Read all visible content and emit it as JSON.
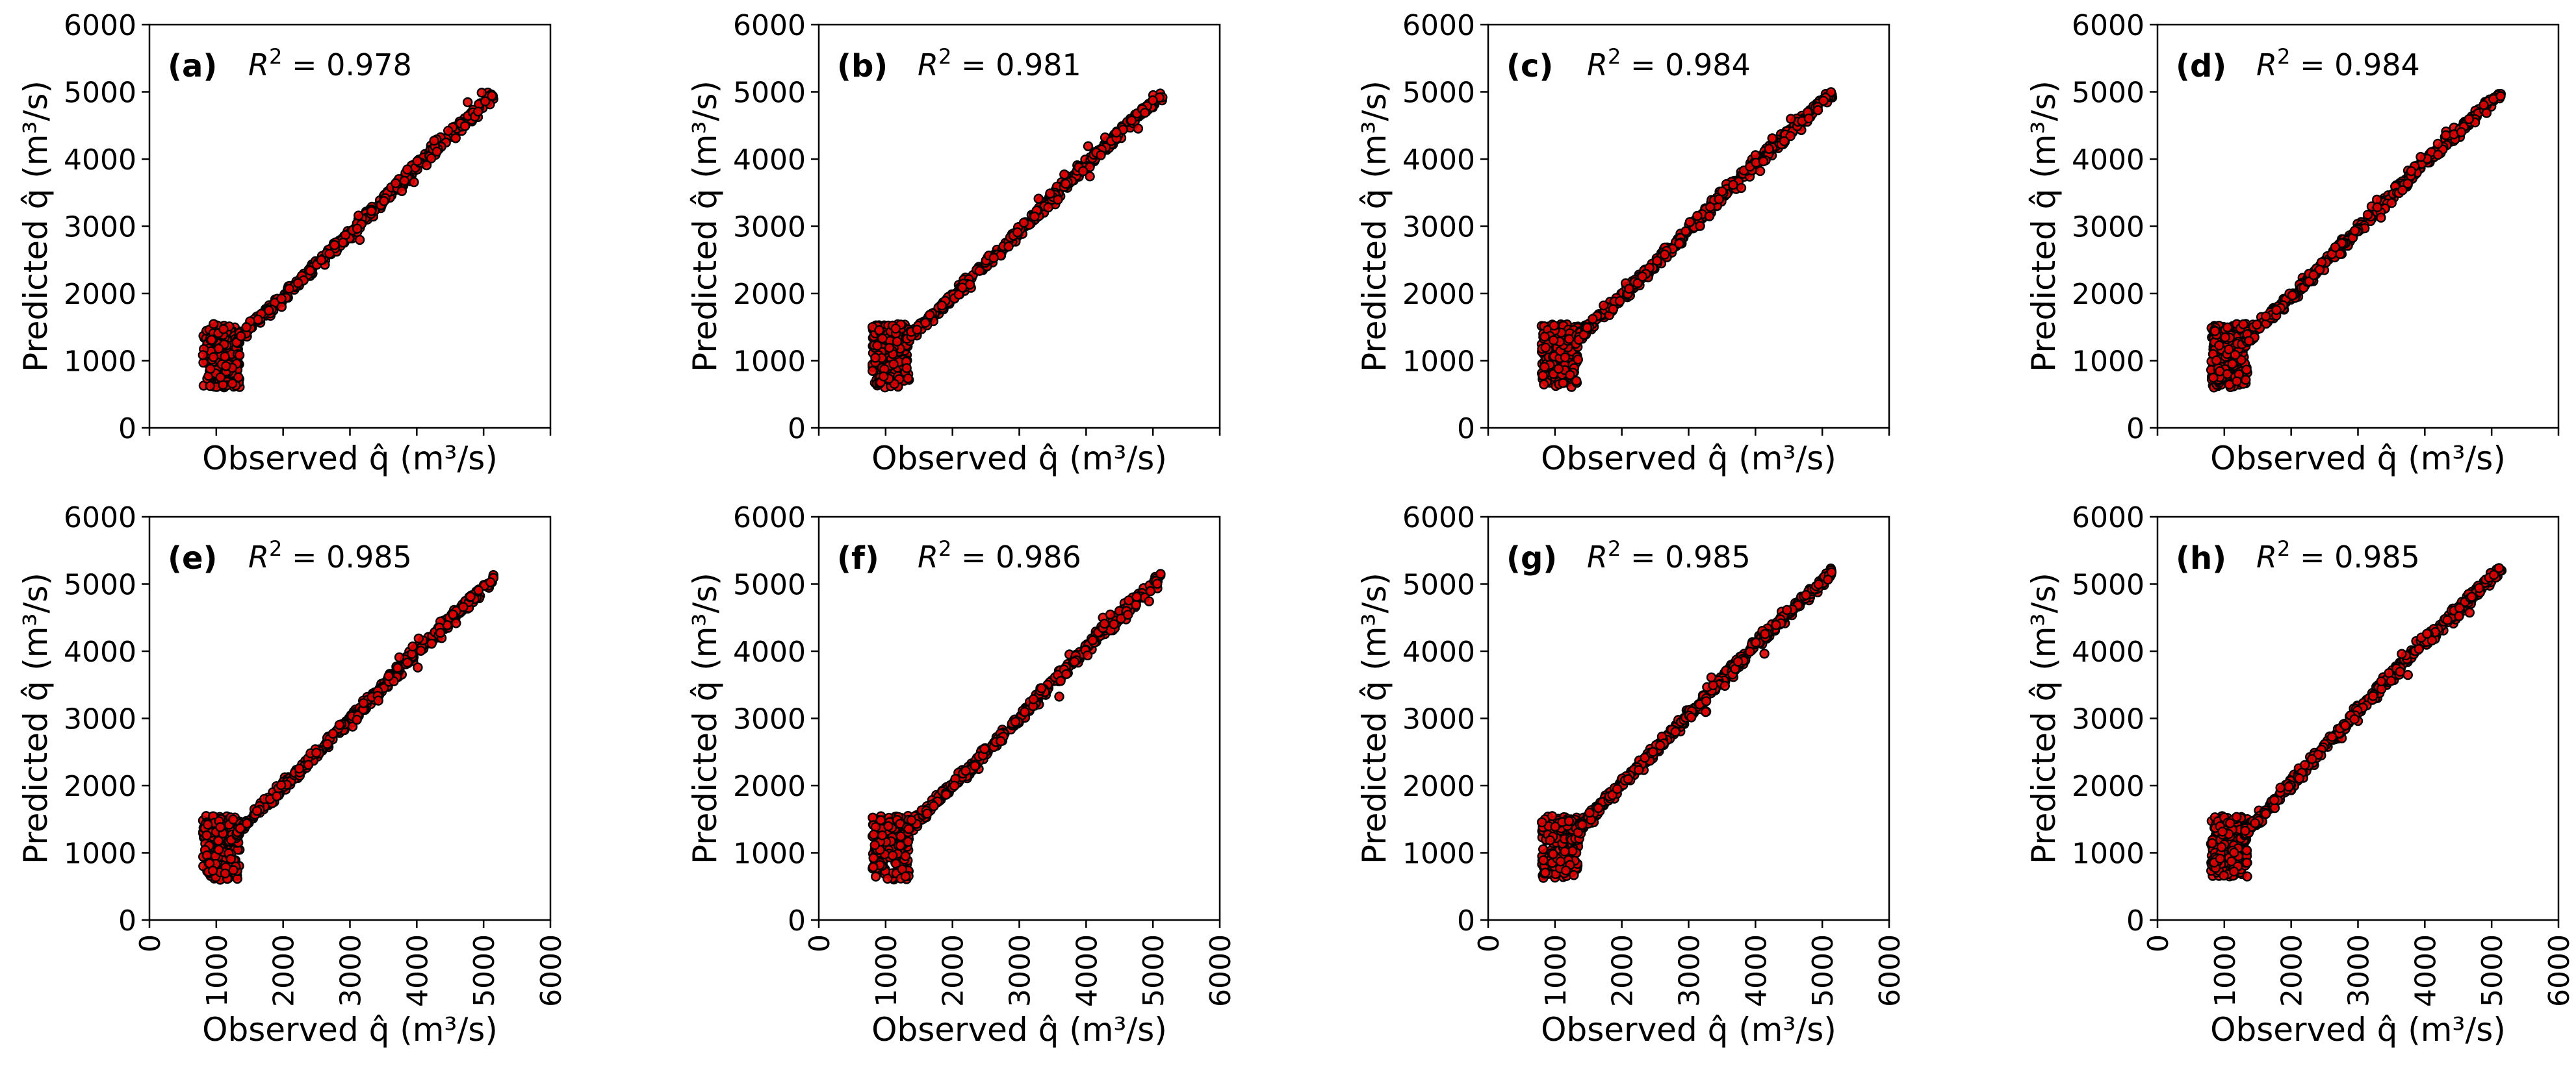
{
  "figure": {
    "background": "#ffffff",
    "marker_fill": "#e00000",
    "marker_edge": "#000000"
  },
  "chart_data": [
    {
      "type": "scatter",
      "panel_label": "(a)",
      "r2_label": "R",
      "r2_value": "0.978",
      "xlabel": "Observed q̂ (m³/s)",
      "ylabel": "Predicted q̂ (m³/s)",
      "xlim": [
        0,
        6000
      ],
      "ylim": [
        0,
        6000
      ],
      "xticks": [
        "0",
        "1000",
        "2000",
        "3000",
        "4000",
        "5000",
        "6000"
      ],
      "yticks": [
        "0",
        "1000",
        "2000",
        "3000",
        "4000",
        "5000",
        "6000"
      ],
      "show_xtick_labels": false,
      "trend_x": [
        800,
        1500,
        2000,
        3000,
        4000,
        5150
      ],
      "trend_y": [
        800,
        1500,
        1950,
        2900,
        3900,
        4950
      ],
      "low_cluster": {
        "x_range": [
          800,
          1350
        ],
        "y_range": [
          600,
          1550
        ]
      },
      "series_max": [
        5150,
        4960
      ]
    },
    {
      "type": "scatter",
      "panel_label": "(b)",
      "r2_label": "R",
      "r2_value": "0.981",
      "xlabel": "Observed q̂ (m³/s)",
      "ylabel": "Predicted q̂ (m³/s)",
      "xlim": [
        0,
        6000
      ],
      "ylim": [
        0,
        6000
      ],
      "xticks": [
        "0",
        "1000",
        "2000",
        "3000",
        "4000",
        "5000",
        "6000"
      ],
      "yticks": [
        "0",
        "1000",
        "2000",
        "3000",
        "4000",
        "5000",
        "6000"
      ],
      "show_xtick_labels": false,
      "trend_x": [
        800,
        1500,
        2000,
        3000,
        4000,
        5150
      ],
      "trend_y": [
        800,
        1500,
        1950,
        2920,
        3920,
        4980
      ],
      "low_cluster": {
        "x_range": [
          800,
          1350
        ],
        "y_range": [
          600,
          1550
        ]
      },
      "series_max": [
        5150,
        4990
      ]
    },
    {
      "type": "scatter",
      "panel_label": "(c)",
      "r2_label": "R",
      "r2_value": "0.984",
      "xlabel": "Observed q̂ (m³/s)",
      "ylabel": "Predicted q̂ (m³/s)",
      "xlim": [
        0,
        6000
      ],
      "ylim": [
        0,
        6000
      ],
      "xticks": [
        "0",
        "1000",
        "2000",
        "3000",
        "4000",
        "5000",
        "6000"
      ],
      "yticks": [
        "0",
        "1000",
        "2000",
        "3000",
        "4000",
        "5000",
        "6000"
      ],
      "show_xtick_labels": false,
      "trend_x": [
        800,
        1500,
        2000,
        3000,
        4000,
        5150
      ],
      "trend_y": [
        800,
        1500,
        1950,
        2950,
        3950,
        5000
      ],
      "low_cluster": {
        "x_range": [
          800,
          1350
        ],
        "y_range": [
          600,
          1550
        ]
      },
      "series_max": [
        5150,
        5020
      ]
    },
    {
      "type": "scatter",
      "panel_label": "(d)",
      "r2_label": "R",
      "r2_value": "0.984",
      "xlabel": "Observed q̂ (m³/s)",
      "ylabel": "Predicted q̂ (m³/s)",
      "xlim": [
        0,
        6000
      ],
      "ylim": [
        0,
        6000
      ],
      "xticks": [
        "0",
        "1000",
        "2000",
        "3000",
        "4000",
        "5000",
        "6000"
      ],
      "yticks": [
        "0",
        "1000",
        "2000",
        "3000",
        "4000",
        "5000",
        "6000"
      ],
      "show_xtick_labels": false,
      "trend_x": [
        800,
        1500,
        2000,
        3000,
        4000,
        5150
      ],
      "trend_y": [
        800,
        1500,
        1950,
        2950,
        3950,
        5000
      ],
      "low_cluster": {
        "x_range": [
          800,
          1350
        ],
        "y_range": [
          600,
          1550
        ]
      },
      "series_max": [
        5150,
        5030
      ]
    },
    {
      "type": "scatter",
      "panel_label": "(e)",
      "r2_label": "R",
      "r2_value": "0.985",
      "xlabel": "Observed q̂ (m³/s)",
      "ylabel": "Predicted q̂ (m³/s)",
      "xlim": [
        0,
        6000
      ],
      "ylim": [
        0,
        6000
      ],
      "xticks": [
        "0",
        "1000",
        "2000",
        "3000",
        "4000",
        "5000",
        "6000"
      ],
      "yticks": [
        "0",
        "1000",
        "2000",
        "3000",
        "4000",
        "5000",
        "6000"
      ],
      "show_xtick_labels": true,
      "trend_x": [
        800,
        1500,
        2000,
        3000,
        4000,
        5150
      ],
      "trend_y": [
        800,
        1500,
        1980,
        2980,
        4000,
        5080
      ],
      "low_cluster": {
        "x_range": [
          800,
          1350
        ],
        "y_range": [
          600,
          1550
        ]
      },
      "series_max": [
        5150,
        5090
      ]
    },
    {
      "type": "scatter",
      "panel_label": "(f)",
      "r2_label": "R",
      "r2_value": "0.986",
      "xlabel": "Observed q̂ (m³/s)",
      "ylabel": "Predicted q̂ (m³/s)",
      "xlim": [
        0,
        6000
      ],
      "ylim": [
        0,
        6000
      ],
      "xticks": [
        "0",
        "1000",
        "2000",
        "3000",
        "4000",
        "5000",
        "6000"
      ],
      "yticks": [
        "0",
        "1000",
        "2000",
        "3000",
        "4000",
        "5000",
        "6000"
      ],
      "show_xtick_labels": true,
      "trend_x": [
        800,
        1500,
        2000,
        3000,
        4000,
        5150
      ],
      "trend_y": [
        800,
        1500,
        2000,
        3000,
        4050,
        5130
      ],
      "low_cluster": {
        "x_range": [
          800,
          1350
        ],
        "y_range": [
          600,
          1550
        ]
      },
      "series_max": [
        5150,
        5140
      ]
    },
    {
      "type": "scatter",
      "panel_label": "(g)",
      "r2_label": "R",
      "r2_value": "0.985",
      "xlabel": "Observed q̂ (m³/s)",
      "ylabel": "Predicted q̂ (m³/s)",
      "xlim": [
        0,
        6000
      ],
      "ylim": [
        0,
        6000
      ],
      "xticks": [
        "0",
        "1000",
        "2000",
        "3000",
        "4000",
        "5000",
        "6000"
      ],
      "yticks": [
        "0",
        "1000",
        "2000",
        "3000",
        "4000",
        "5000",
        "6000"
      ],
      "show_xtick_labels": true,
      "trend_x": [
        800,
        1500,
        2000,
        3000,
        4000,
        5150
      ],
      "trend_y": [
        800,
        1500,
        2020,
        3050,
        4100,
        5180
      ],
      "low_cluster": {
        "x_range": [
          800,
          1350
        ],
        "y_range": [
          600,
          1550
        ]
      },
      "series_max": [
        5150,
        5200
      ]
    },
    {
      "type": "scatter",
      "panel_label": "(h)",
      "r2_label": "R",
      "r2_value": "0.985",
      "xlabel": "Observed q̂ (m³/s)",
      "ylabel": "Predicted q̂ (m³/s)",
      "xlim": [
        0,
        6000
      ],
      "ylim": [
        0,
        6000
      ],
      "xticks": [
        "0",
        "1000",
        "2000",
        "3000",
        "4000",
        "5000",
        "6000"
      ],
      "yticks": [
        "0",
        "1000",
        "2000",
        "3000",
        "4000",
        "5000",
        "6000"
      ],
      "show_xtick_labels": true,
      "trend_x": [
        800,
        1500,
        2000,
        3000,
        4000,
        5150
      ],
      "trend_y": [
        800,
        1500,
        2050,
        3100,
        4150,
        5230
      ],
      "low_cluster": {
        "x_range": [
          800,
          1350
        ],
        "y_range": [
          600,
          1550
        ]
      },
      "series_max": [
        5150,
        5250
      ]
    }
  ]
}
